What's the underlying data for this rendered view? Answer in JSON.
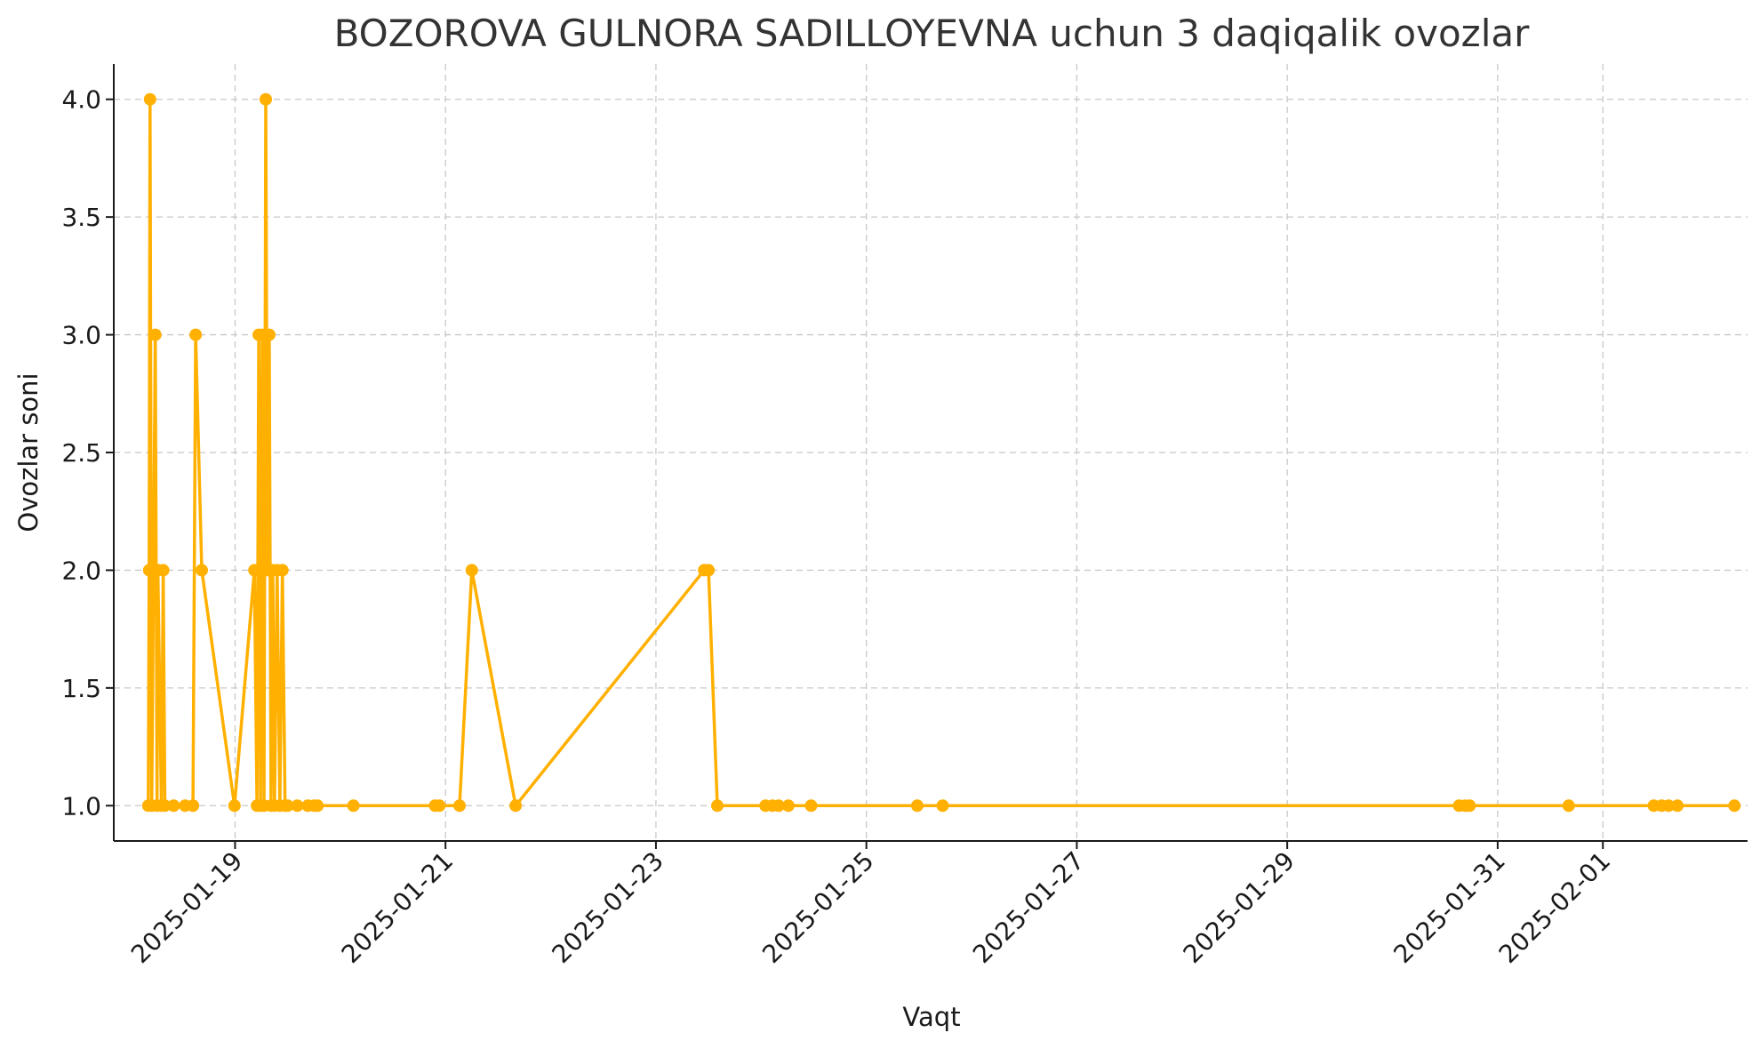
{
  "chart_data": {
    "type": "line",
    "title": "BOZOROVA GULNORA SADILLOYEVNA uchun 3 daqiqalik ovozlar",
    "xlabel": "Vaqt",
    "ylabel": "Ovozlar soni",
    "color": "#FFB000",
    "grid": true,
    "ylim": [
      0.85,
      4.15
    ],
    "xlim": [
      "2025-01-17 20:20",
      "2025-02-02 09:00"
    ],
    "y_ticks": [
      "1.0",
      "1.5",
      "2.0",
      "2.5",
      "3.0",
      "3.5",
      "4.0"
    ],
    "x_ticks": [
      "2025-01-19",
      "2025-01-21",
      "2025-01-23",
      "2025-01-25",
      "2025-01-27",
      "2025-01-29",
      "2025-01-31",
      "2025-02-01"
    ],
    "series": [
      {
        "x": [
          "2025-01-18 04:12",
          "2025-01-18 04:24",
          "2025-01-18 04:36",
          "2025-01-18 05:00",
          "2025-01-18 05:24",
          "2025-01-18 05:48",
          "2025-01-18 06:12",
          "2025-01-18 06:24",
          "2025-01-18 07:12",
          "2025-01-18 07:36",
          "2025-01-18 08:00",
          "2025-01-18 10:00",
          "2025-01-18 12:36",
          "2025-01-18 14:24",
          "2025-01-18 15:00",
          "2025-01-18 16:24",
          "2025-01-18 23:52",
          "2025-01-19 04:24",
          "2025-01-19 05:00",
          "2025-01-19 05:24",
          "2025-01-19 05:48",
          "2025-01-19 06:12",
          "2025-01-19 06:36",
          "2025-01-19 07:00",
          "2025-01-19 07:24",
          "2025-01-19 07:48",
          "2025-01-19 08:12",
          "2025-01-19 08:36",
          "2025-01-19 09:00",
          "2025-01-19 09:36",
          "2025-01-19 10:12",
          "2025-01-19 10:48",
          "2025-01-19 11:24",
          "2025-01-19 12:00",
          "2025-01-19 14:12",
          "2025-01-19 16:36",
          "2025-01-19 18:00",
          "2025-01-19 18:48",
          "2025-01-20 03:00",
          "2025-01-20 21:36",
          "2025-01-20 22:36",
          "2025-01-21 03:12",
          "2025-01-21 06:00",
          "2025-01-21 16:00",
          "2025-01-23 11:00",
          "2025-01-23 12:00",
          "2025-01-23 14:00",
          "2025-01-24 01:00",
          "2025-01-24 02:36",
          "2025-01-24 04:00",
          "2025-01-24 06:12",
          "2025-01-24 11:24",
          "2025-01-25 11:36",
          "2025-01-25 17:24",
          "2025-01-30 15:12",
          "2025-01-30 16:36",
          "2025-01-30 17:36",
          "2025-01-31 16:12",
          "2025-02-01 11:36",
          "2025-02-01 13:24",
          "2025-02-01 15:00",
          "2025-02-01 17:00",
          "2025-02-02 06:00"
        ],
        "y": [
          1,
          2,
          4,
          1,
          2,
          3,
          1,
          2,
          1,
          2,
          1,
          1,
          1,
          1,
          3,
          2,
          1,
          2,
          1,
          3,
          1,
          3,
          1,
          4,
          2,
          3,
          1,
          2,
          1,
          2,
          1,
          2,
          1,
          1,
          1,
          1,
          1,
          1,
          1,
          1,
          1,
          1,
          2,
          1,
          2,
          2,
          1,
          1,
          1,
          1,
          1,
          1,
          1,
          1,
          1,
          1,
          1,
          1,
          1,
          1,
          1,
          1,
          1
        ]
      }
    ]
  }
}
